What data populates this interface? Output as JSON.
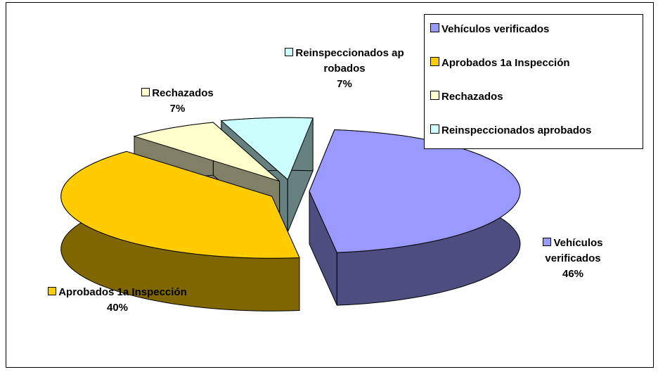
{
  "chart_data": {
    "type": "pie3d",
    "categories": [
      "Vehículos verificados",
      "Aprobados 1a Inspección",
      "Rechazados",
      "Reinspeccionados aprobados"
    ],
    "values": [
      46,
      40,
      7,
      7
    ],
    "value_labels": [
      "46%",
      "40%",
      "7%",
      "7%"
    ],
    "colors": [
      "#9999ff",
      "#ffcc00",
      "#ffffcc",
      "#ccffff"
    ],
    "side_colors": [
      "#4d4d80",
      "#806600",
      "#808066",
      "#668080"
    ],
    "legend": "top-right"
  }
}
